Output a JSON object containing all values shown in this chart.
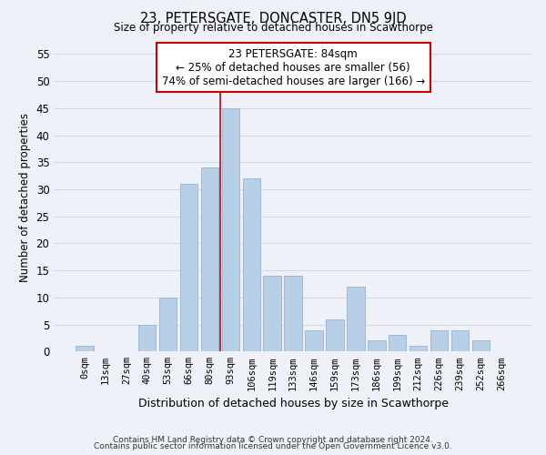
{
  "title": "23, PETERSGATE, DONCASTER, DN5 9JD",
  "subtitle": "Size of property relative to detached houses in Scawthorpe",
  "xlabel": "Distribution of detached houses by size in Scawthorpe",
  "ylabel": "Number of detached properties",
  "bar_labels": [
    "0sqm",
    "13sqm",
    "27sqm",
    "40sqm",
    "53sqm",
    "66sqm",
    "80sqm",
    "93sqm",
    "106sqm",
    "119sqm",
    "133sqm",
    "146sqm",
    "159sqm",
    "173sqm",
    "186sqm",
    "199sqm",
    "212sqm",
    "226sqm",
    "239sqm",
    "252sqm",
    "266sqm"
  ],
  "bar_values": [
    1,
    0,
    0,
    5,
    10,
    31,
    34,
    45,
    32,
    14,
    14,
    4,
    6,
    12,
    2,
    3,
    1,
    4,
    4,
    2,
    0
  ],
  "bar_color": "#b8cfe8",
  "bar_edge_color": "#a0b8d8",
  "ylim": [
    0,
    57
  ],
  "yticks": [
    0,
    5,
    10,
    15,
    20,
    25,
    30,
    35,
    40,
    45,
    50,
    55
  ],
  "vline_x": 6.5,
  "vline_color": "#cc0000",
  "annotation_title": "23 PETERSGATE: 84sqm",
  "annotation_line1": "← 25% of detached houses are smaller (56)",
  "annotation_line2": "74% of semi-detached houses are larger (166) →",
  "annotation_box_color": "#ffffff",
  "annotation_box_edge": "#cc0000",
  "footer1": "Contains HM Land Registry data © Crown copyright and database right 2024.",
  "footer2": "Contains public sector information licensed under the Open Government Licence v3.0.",
  "grid_color": "#d0d8e8",
  "background_color": "#eef2f8"
}
